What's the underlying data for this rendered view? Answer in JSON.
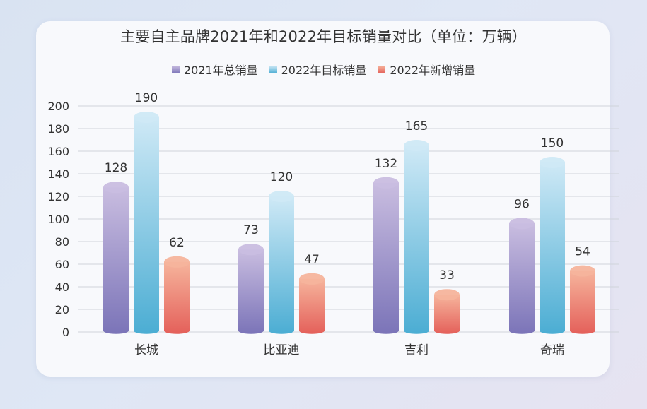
{
  "chart_data": {
    "type": "bar",
    "title": "主要自主品牌2021年和2022年目标销量对比（单位：万辆）",
    "categories": [
      "长城",
      "比亚迪",
      "吉利",
      "奇瑞"
    ],
    "series": [
      {
        "name": "2021年总销量",
        "values": [
          128,
          73,
          132,
          96
        ],
        "color_top": "#c9bde0",
        "color_bottom": "#7b74b8"
      },
      {
        "name": "2022年目标销量",
        "values": [
          190,
          120,
          165,
          150
        ],
        "color_top": "#cfe9f6",
        "color_bottom": "#4badd3"
      },
      {
        "name": "2022年新增销量",
        "values": [
          62,
          47,
          33,
          54
        ],
        "color_top": "#f6b49c",
        "color_bottom": "#e4605a"
      }
    ],
    "ylim": [
      0,
      200
    ],
    "yticks": [
      0,
      20,
      40,
      60,
      80,
      100,
      120,
      140,
      160,
      180,
      200
    ],
    "grid": true,
    "legend_position": "top-center",
    "xlabel": "",
    "ylabel": ""
  }
}
